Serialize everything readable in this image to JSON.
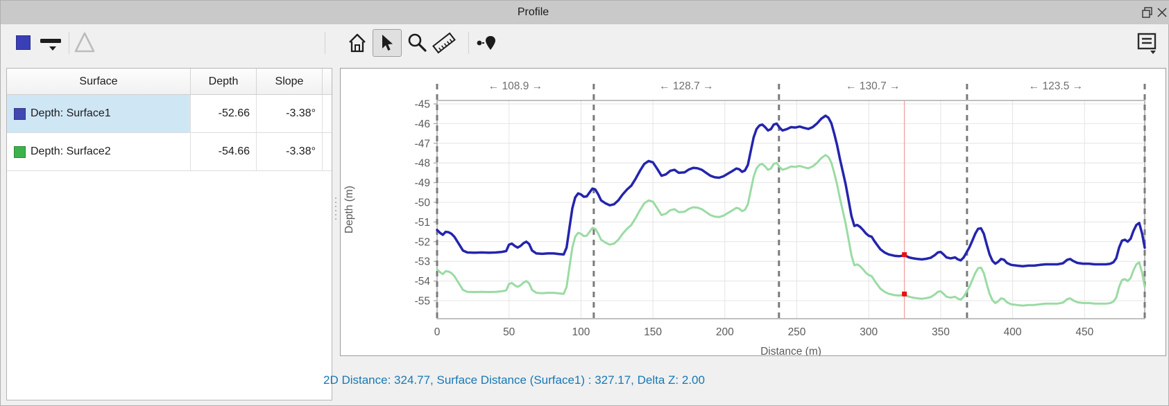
{
  "window": {
    "title": "Profile"
  },
  "toolbar": {
    "color_swatch": "#3b3fb5",
    "icons": [
      "color-swatch",
      "line-width",
      "triangle",
      "home",
      "cursor",
      "zoom",
      "ruler",
      "pins",
      "annotation"
    ],
    "active_tool": "cursor"
  },
  "table": {
    "columns": [
      "Surface",
      "Depth",
      "Slope"
    ],
    "rows": [
      {
        "label": "Depth: Surface1",
        "swatch": "#4347b2",
        "depth": "-52.66",
        "slope": "-3.38°",
        "selected": true
      },
      {
        "label": "Depth: Surface2",
        "swatch": "#3cb34a",
        "depth": "-54.66",
        "slope": "-3.38°",
        "selected": false
      }
    ]
  },
  "status_bar": {
    "text": "2D Distance: 324.77, Surface Distance (Surface1) : 327.17, Delta Z: 2.00"
  },
  "chart_data": {
    "type": "line",
    "xlabel": "Distance (m)",
    "ylabel": "Depth (m)",
    "xlim": [
      0,
      491.8
    ],
    "ylim": [
      -55.9,
      -44.8
    ],
    "grid": true,
    "x_ticks": [
      0,
      50,
      100,
      150,
      200,
      250,
      300,
      350,
      400,
      450
    ],
    "y_ticks": [
      -45,
      -46,
      -47,
      -48,
      -49,
      -50,
      -51,
      -52,
      -53,
      -54,
      -55
    ],
    "segment_boundaries": [
      0,
      108.9,
      237.6,
      368.3,
      491.8
    ],
    "segment_labels": [
      "← 108.9 →",
      "← 128.7 →",
      "← 130.7 →",
      "← 123.5 →"
    ],
    "cursor": {
      "x": 324.77,
      "line_color": "#efa3a3",
      "marker_color": "#e81212",
      "markers": [
        {
          "series": "Surface1",
          "y": -52.66
        },
        {
          "series": "Surface2",
          "y": -54.66
        }
      ]
    },
    "x": [
      0,
      2,
      4,
      6,
      8,
      10,
      12,
      15,
      18,
      21,
      26,
      31,
      36,
      41,
      45,
      48,
      50,
      52,
      54,
      56,
      58,
      60,
      62,
      64,
      66,
      69,
      73,
      77,
      81,
      85,
      88,
      90,
      92,
      94,
      96,
      98,
      100,
      102,
      104,
      106,
      108,
      110,
      112,
      114,
      117,
      120,
      123,
      126,
      129,
      132,
      135,
      138,
      141,
      144,
      147,
      150,
      153,
      156,
      159,
      162,
      165,
      168,
      172,
      175,
      178,
      181,
      184,
      187,
      190,
      193,
      196,
      199,
      202,
      205,
      208,
      210,
      212,
      214,
      216,
      218,
      220,
      222,
      224,
      226,
      228,
      230,
      232,
      234,
      236,
      238,
      240,
      243,
      246,
      249,
      252,
      255,
      258,
      261,
      264,
      267,
      270,
      272,
      274,
      276,
      278,
      280,
      282,
      284,
      286,
      288,
      290,
      292,
      294,
      296,
      298,
      300,
      302,
      304,
      306,
      308,
      311,
      314,
      318,
      321,
      325,
      328,
      331,
      334,
      337,
      340,
      343,
      346,
      348,
      350,
      352,
      354,
      357,
      360,
      362,
      364,
      366,
      368,
      370,
      372,
      374,
      376,
      378,
      380,
      382,
      384,
      386,
      388,
      390,
      392,
      394,
      396,
      399,
      403,
      407,
      411,
      415,
      419,
      423,
      427,
      431,
      435,
      438,
      440,
      442,
      445,
      449,
      453,
      457,
      461,
      465,
      468,
      470,
      472,
      474,
      476,
      478,
      480,
      482,
      484,
      486,
      488,
      490,
      491.8
    ],
    "series": [
      {
        "name": "Surface1",
        "color": "#2424ae",
        "width": 3.5,
        "values": [
          -51.4,
          -51.55,
          -51.65,
          -51.5,
          -51.52,
          -51.6,
          -51.75,
          -52.1,
          -52.45,
          -52.55,
          -52.56,
          -52.55,
          -52.56,
          -52.55,
          -52.52,
          -52.48,
          -52.15,
          -52.1,
          -52.22,
          -52.3,
          -52.22,
          -52.08,
          -52.0,
          -52.12,
          -52.45,
          -52.6,
          -52.62,
          -52.6,
          -52.6,
          -52.63,
          -52.65,
          -52.3,
          -51.3,
          -50.3,
          -49.75,
          -49.55,
          -49.6,
          -49.72,
          -49.7,
          -49.5,
          -49.3,
          -49.35,
          -49.6,
          -49.9,
          -50.05,
          -50.15,
          -50.1,
          -49.9,
          -49.6,
          -49.35,
          -49.15,
          -48.8,
          -48.4,
          -48.05,
          -47.9,
          -47.97,
          -48.3,
          -48.65,
          -48.58,
          -48.4,
          -48.35,
          -48.5,
          -48.48,
          -48.33,
          -48.25,
          -48.27,
          -48.35,
          -48.5,
          -48.65,
          -48.73,
          -48.75,
          -48.68,
          -48.55,
          -48.42,
          -48.28,
          -48.32,
          -48.45,
          -48.38,
          -48.1,
          -47.4,
          -46.7,
          -46.28,
          -46.1,
          -46.05,
          -46.18,
          -46.35,
          -46.28,
          -46.05,
          -46.0,
          -46.2,
          -46.35,
          -46.28,
          -46.18,
          -46.2,
          -46.15,
          -46.22,
          -46.27,
          -46.18,
          -46.0,
          -45.75,
          -45.6,
          -45.7,
          -45.98,
          -46.5,
          -47.1,
          -47.8,
          -48.45,
          -49.1,
          -49.9,
          -50.7,
          -51.2,
          -51.15,
          -51.25,
          -51.4,
          -51.58,
          -51.7,
          -51.75,
          -51.98,
          -52.18,
          -52.38,
          -52.55,
          -52.65,
          -52.72,
          -52.74,
          -52.7,
          -52.8,
          -52.85,
          -52.88,
          -52.9,
          -52.87,
          -52.82,
          -52.68,
          -52.55,
          -52.52,
          -52.65,
          -52.8,
          -52.85,
          -52.8,
          -52.9,
          -52.95,
          -52.8,
          -52.55,
          -52.28,
          -51.95,
          -51.6,
          -51.35,
          -51.32,
          -51.6,
          -52.15,
          -52.65,
          -52.98,
          -53.12,
          -53.02,
          -52.88,
          -52.92,
          -53.08,
          -53.18,
          -53.22,
          -53.25,
          -53.22,
          -53.22,
          -53.18,
          -53.15,
          -53.15,
          -53.15,
          -53.1,
          -52.92,
          -52.88,
          -52.98,
          -53.08,
          -53.12,
          -53.12,
          -53.15,
          -53.15,
          -53.15,
          -53.12,
          -53.05,
          -52.85,
          -52.3,
          -51.95,
          -51.9,
          -52.0,
          -51.85,
          -51.45,
          -51.15,
          -51.05,
          -51.6,
          -52.3
        ]
      },
      {
        "name": "Surface2",
        "color": "#9adba3",
        "width": 3,
        "values": [
          -53.4,
          -53.55,
          -53.65,
          -53.5,
          -53.52,
          -53.6,
          -53.75,
          -54.1,
          -54.45,
          -54.55,
          -54.56,
          -54.55,
          -54.56,
          -54.55,
          -54.52,
          -54.48,
          -54.15,
          -54.1,
          -54.22,
          -54.3,
          -54.22,
          -54.08,
          -54.0,
          -54.12,
          -54.45,
          -54.6,
          -54.62,
          -54.6,
          -54.6,
          -54.63,
          -54.65,
          -54.3,
          -53.3,
          -52.3,
          -51.75,
          -51.55,
          -51.6,
          -51.72,
          -51.7,
          -51.5,
          -51.3,
          -51.35,
          -51.6,
          -51.9,
          -52.05,
          -52.15,
          -52.1,
          -51.9,
          -51.6,
          -51.35,
          -51.15,
          -50.8,
          -50.4,
          -50.05,
          -49.9,
          -49.97,
          -50.3,
          -50.65,
          -50.58,
          -50.4,
          -50.35,
          -50.5,
          -50.48,
          -50.33,
          -50.25,
          -50.27,
          -50.35,
          -50.5,
          -50.65,
          -50.73,
          -50.75,
          -50.68,
          -50.55,
          -50.42,
          -50.28,
          -50.32,
          -50.45,
          -50.38,
          -50.1,
          -49.4,
          -48.7,
          -48.28,
          -48.1,
          -48.05,
          -48.18,
          -48.35,
          -48.28,
          -48.05,
          -48.0,
          -48.2,
          -48.35,
          -48.28,
          -48.18,
          -48.2,
          -48.15,
          -48.22,
          -48.27,
          -48.18,
          -48.0,
          -47.75,
          -47.6,
          -47.7,
          -47.98,
          -48.5,
          -49.1,
          -49.8,
          -50.45,
          -51.1,
          -51.9,
          -52.7,
          -53.2,
          -53.15,
          -53.25,
          -53.4,
          -53.58,
          -53.7,
          -53.75,
          -53.98,
          -54.18,
          -54.38,
          -54.55,
          -54.65,
          -54.72,
          -54.74,
          -54.7,
          -54.8,
          -54.85,
          -54.88,
          -54.9,
          -54.87,
          -54.82,
          -54.68,
          -54.55,
          -54.52,
          -54.65,
          -54.8,
          -54.85,
          -54.8,
          -54.9,
          -54.95,
          -54.8,
          -54.55,
          -54.28,
          -53.95,
          -53.6,
          -53.35,
          -53.32,
          -53.6,
          -54.15,
          -54.65,
          -54.98,
          -55.12,
          -55.02,
          -54.88,
          -54.92,
          -55.08,
          -55.18,
          -55.22,
          -55.25,
          -55.22,
          -55.22,
          -55.18,
          -55.15,
          -55.15,
          -55.15,
          -55.1,
          -54.92,
          -54.88,
          -54.98,
          -55.08,
          -55.12,
          -55.12,
          -55.15,
          -55.15,
          -55.15,
          -55.12,
          -55.05,
          -54.85,
          -54.3,
          -53.95,
          -53.9,
          -54.0,
          -53.85,
          -53.45,
          -53.15,
          -53.05,
          -53.6,
          -54.3
        ]
      }
    ]
  }
}
